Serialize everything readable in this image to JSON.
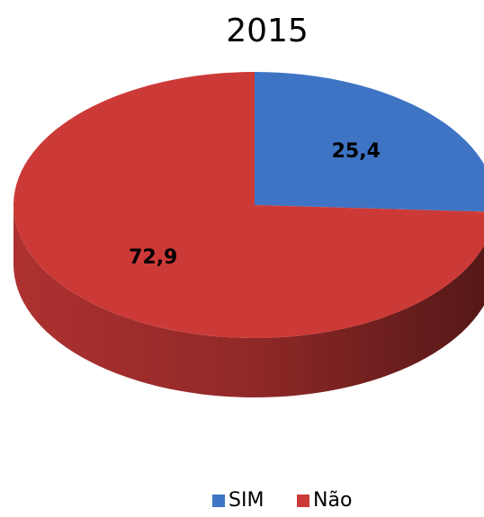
{
  "chart_data": {
    "type": "pie",
    "title": "2015",
    "categories": [
      "SIM",
      "Não"
    ],
    "values": [
      25.4,
      72.9
    ],
    "value_labels": [
      "25,4",
      "72,9"
    ],
    "colors": [
      "#3f74c4",
      "#cc3a38"
    ],
    "legend": "bottom"
  }
}
